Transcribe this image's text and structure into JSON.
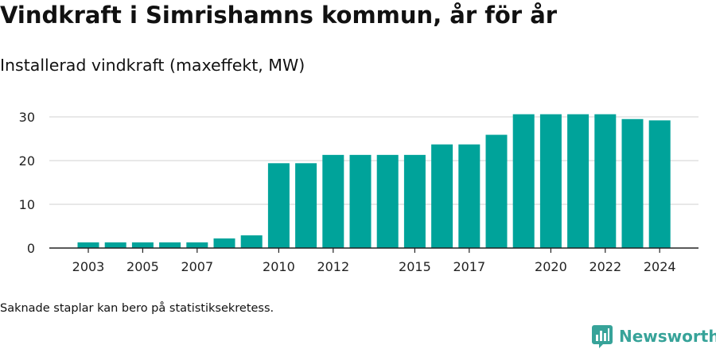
{
  "header": {
    "title": "Vindkraft i Simrishamns kommun, år för år",
    "subtitle": "Installerad vindkraft (maxeffekt, MW)"
  },
  "footer": {
    "note": "Saknade staplar kan bero på statistiksekretess.",
    "brand": "Newsworthy"
  },
  "colors": {
    "bar": "#00a39a",
    "grid": "#e0e0e0",
    "axis": "#222222",
    "brand": "#37a399"
  },
  "chart_data": {
    "type": "bar",
    "categories": [
      "2003",
      "2004",
      "2005",
      "2006",
      "2007",
      "2008",
      "2009",
      "2010",
      "2011",
      "2012",
      "2013",
      "2014",
      "2015",
      "2016",
      "2017",
      "2018",
      "2019",
      "2020",
      "2021",
      "2022",
      "2023",
      "2024"
    ],
    "values": [
      1.3,
      1.3,
      1.3,
      1.3,
      1.3,
      2.2,
      2.9,
      19.4,
      19.4,
      21.3,
      21.3,
      21.3,
      21.3,
      23.7,
      23.7,
      25.9,
      30.6,
      30.6,
      30.6,
      30.6,
      29.5,
      29.2
    ],
    "x_tick_labels": [
      "2003",
      "2005",
      "2007",
      "2010",
      "2012",
      "2015",
      "2017",
      "2020",
      "2022",
      "2024"
    ],
    "y_ticks": [
      0,
      10,
      20,
      30
    ],
    "ylim": [
      0,
      32
    ],
    "grid": true,
    "legend": "none"
  }
}
